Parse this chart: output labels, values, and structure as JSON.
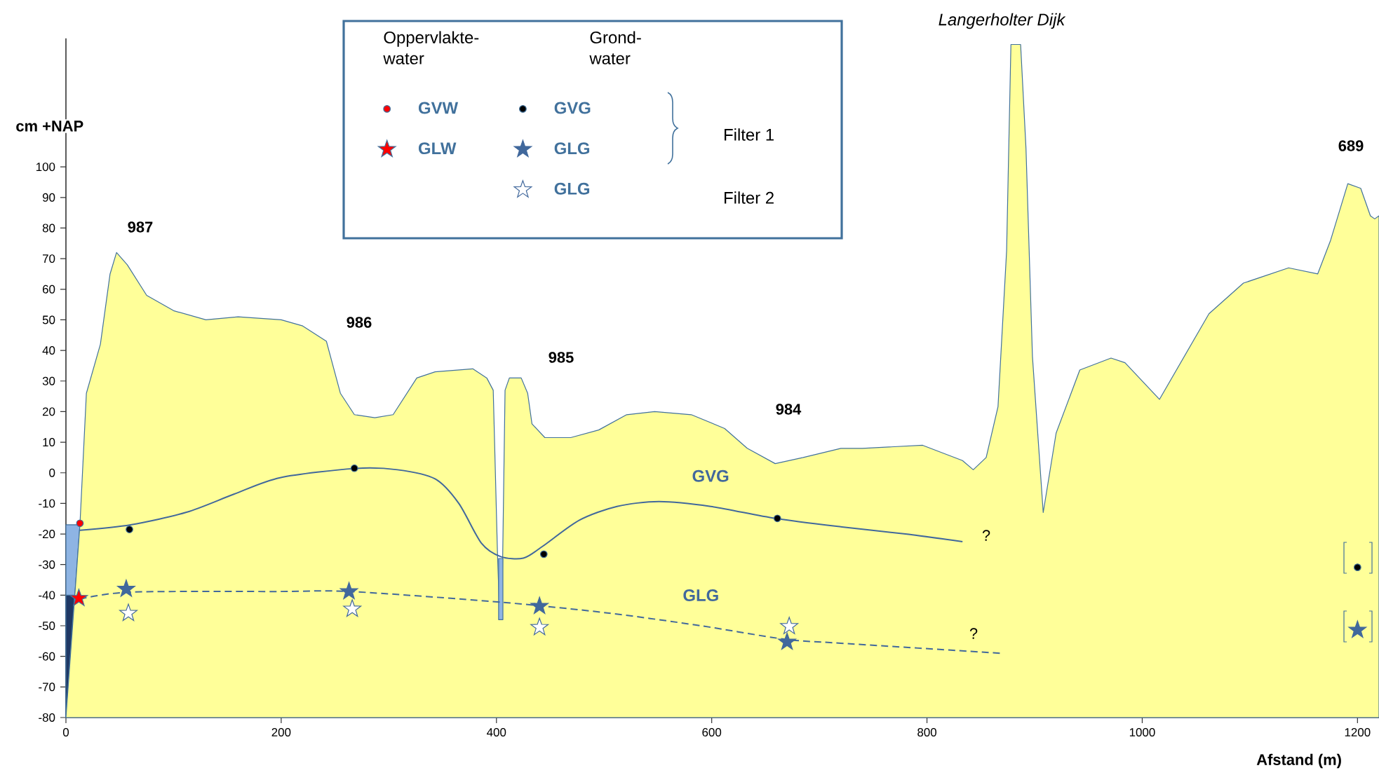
{
  "chart_data": {
    "type": "scatter",
    "xlabel": "Afstand (m)",
    "ylabel": "cm +NAP",
    "xlim": [
      0,
      1220
    ],
    "ylim": [
      -80,
      142
    ],
    "xticks": [
      0,
      200,
      400,
      600,
      800,
      1000,
      1200
    ],
    "yticks": [
      -80,
      -70,
      -60,
      -50,
      -40,
      -30,
      -20,
      -10,
      0,
      10,
      20,
      30,
      40,
      50,
      60,
      70,
      80,
      90,
      100
    ],
    "legend": "top",
    "series": [
      {
        "type": "area",
        "color": "#8eb4e3",
        "x": [
          0,
          0,
          13
        ],
        "values": [
          -80,
          -17,
          -17
        ]
      },
      {
        "type": "area",
        "color": "#1f3864",
        "x": [
          0,
          0,
          8
        ],
        "values": [
          -80,
          -40,
          -40
        ]
      },
      {
        "type": "area",
        "color": "#ffff99",
        "x": [
          0,
          13,
          19,
          32,
          41,
          47,
          57,
          75,
          100,
          130,
          160,
          200,
          220,
          242,
          255,
          268,
          287,
          304,
          326,
          343,
          378,
          391,
          397,
          401,
          403,
          405,
          408,
          412,
          423,
          429,
          433,
          445,
          469,
          495,
          521,
          547,
          581,
          612,
          633,
          659,
          685,
          720,
          740,
          796,
          833,
          843,
          855,
          866,
          874,
          878,
          887,
          892,
          898,
          908,
          920,
          942,
          971,
          984,
          1016,
          1062,
          1094,
          1136,
          1163,
          1175,
          1191,
          1203,
          1212,
          1216,
          1220,
          1220
        ],
        "values": [
          -80,
          -17,
          26,
          42,
          65,
          72,
          68,
          58,
          53,
          50,
          51,
          50,
          48,
          43,
          26,
          19,
          18,
          19,
          31,
          33,
          34,
          31,
          27,
          -27,
          -47,
          -47,
          27,
          31,
          31,
          26,
          16,
          11.5,
          11.5,
          14,
          19,
          20,
          19,
          14.5,
          8,
          3,
          5,
          8,
          8,
          9,
          4,
          1,
          5,
          21.6,
          72.6,
          140,
          140,
          106,
          38,
          -13,
          13,
          33.6,
          37.5,
          36,
          24,
          52,
          62,
          67,
          65,
          76,
          94.5,
          93,
          84,
          83,
          84,
          -80
        ]
      },
      {
        "type": "area",
        "color": "#8eb4e3",
        "x": [
          402,
          402,
          406,
          406
        ],
        "values": [
          -48,
          -28,
          -28,
          -48
        ]
      },
      {
        "type": "line",
        "name": "GVG",
        "color": "#41689c",
        "line_style": "solid",
        "x": [
          13,
          60,
          112,
          156,
          199,
          268,
          308,
          343,
          365,
          386,
          404,
          425,
          443,
          477,
          512,
          551,
          599,
          659,
          721,
          780,
          833
        ],
        "values": [
          -18.8,
          -17,
          -12.9,
          -7,
          -1.6,
          1.4,
          1,
          -2,
          -10,
          -23,
          -27.4,
          -27.9,
          -24,
          -15.5,
          -11,
          -9.4,
          -11,
          -14.9,
          -17.7,
          -20,
          -22.5
        ]
      },
      {
        "type": "line",
        "name": "GLG",
        "color": "#41689c",
        "line_style": "dashed",
        "x": [
          13,
          60,
          199,
          264,
          404,
          503,
          590,
          668,
          720,
          869
        ],
        "values": [
          -41.3,
          -39,
          -38.8,
          -38.8,
          -42.3,
          -45.8,
          -50,
          -54.4,
          -55.7,
          -59
        ]
      },
      {
        "name": "GVW",
        "color": "#ff0000",
        "marker": "circle",
        "x": [
          13
        ],
        "values": [
          -16.5
        ]
      },
      {
        "name": "GLW",
        "color": "#ff0000",
        "marker": "star",
        "x": [
          12
        ],
        "values": [
          -41
        ]
      },
      {
        "name": "GVG",
        "color": "#000000",
        "marker": "circle",
        "x": [
          59,
          268,
          444,
          661,
          1200
        ],
        "values": [
          -18.5,
          1.5,
          -26.6,
          -14.9,
          -30.9
        ]
      },
      {
        "name": "GLG",
        "color": "#41689c",
        "marker": "star",
        "x": [
          56,
          263,
          440,
          670,
          1200
        ],
        "values": [
          -38,
          -38.8,
          -43.6,
          -55.3,
          -51.4
        ]
      },
      {
        "name": "GLG",
        "color": "#ffffff",
        "marker": "star",
        "x": [
          58,
          266,
          440,
          672
        ],
        "values": [
          -45.9,
          -44.5,
          -50.5,
          -50.2
        ]
      }
    ],
    "annotations": [
      "Langerholter Dijk",
      "987",
      "986",
      "985",
      "984",
      "689",
      "?",
      "?",
      "Oppervlakte-water",
      "Grond-water",
      "Filter 1",
      "Filter 2"
    ]
  }
}
